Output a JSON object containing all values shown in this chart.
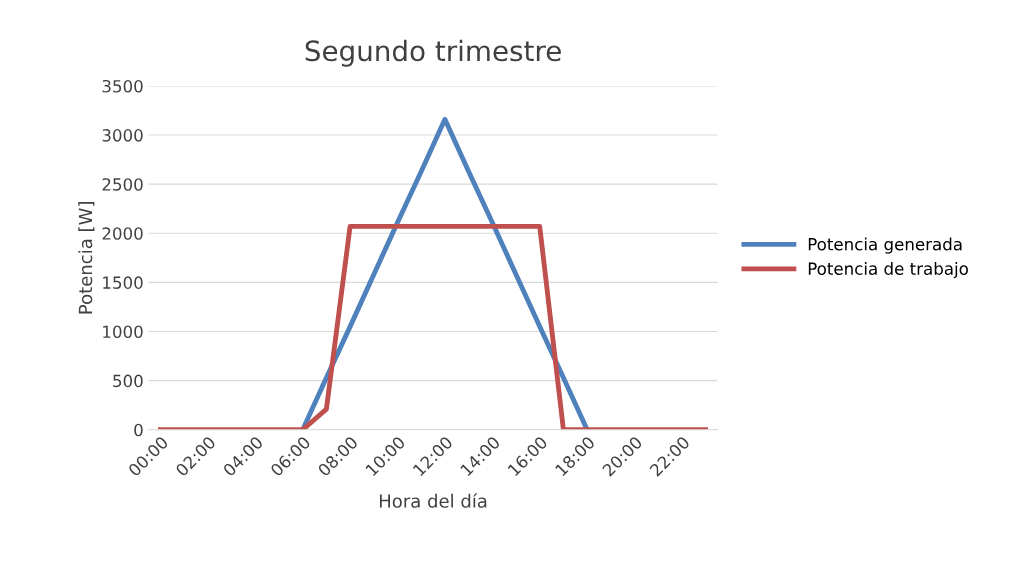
{
  "chart_data": {
    "type": "line",
    "title": "Segundo trimestre",
    "xlabel": "Hora del día",
    "ylabel": "Potencia [W]",
    "x": [
      0,
      1,
      2,
      3,
      4,
      5,
      6,
      7,
      8,
      9,
      10,
      11,
      12,
      13,
      14,
      15,
      16,
      17,
      18,
      19,
      20,
      21,
      22,
      23
    ],
    "xlim": [
      -0.5,
      23.5
    ],
    "xticks": [
      {
        "value": 0,
        "label": "00:00"
      },
      {
        "value": 2,
        "label": "02:00"
      },
      {
        "value": 4,
        "label": "04:00"
      },
      {
        "value": 6,
        "label": "06:00"
      },
      {
        "value": 8,
        "label": "08:00"
      },
      {
        "value": 10,
        "label": "10:00"
      },
      {
        "value": 12,
        "label": "12:00"
      },
      {
        "value": 14,
        "label": "14:00"
      },
      {
        "value": 16,
        "label": "16:00"
      },
      {
        "value": 18,
        "label": "18:00"
      },
      {
        "value": 20,
        "label": "20:00"
      },
      {
        "value": 22,
        "label": "22:00"
      }
    ],
    "ylim": [
      0,
      3500
    ],
    "yticks": [
      0,
      500,
      1000,
      1500,
      2000,
      2500,
      3000,
      3500
    ],
    "grid": "y",
    "legend": "right",
    "marker": "none",
    "line_style": "solid",
    "series": [
      {
        "name": "Potencia generada",
        "color": "#4f81bd",
        "values": [
          null,
          null,
          null,
          null,
          null,
          null,
          0,
          530,
          1050,
          1580,
          2110,
          2630,
          3160,
          2630,
          2110,
          1580,
          1050,
          530,
          0,
          null,
          null,
          null,
          null,
          null
        ]
      },
      {
        "name": "Potencia de trabajo",
        "color": "#c0504d",
        "values": [
          0,
          0,
          0,
          0,
          0,
          0,
          0,
          210,
          2070,
          2070,
          2070,
          2070,
          2070,
          2070,
          2070,
          2070,
          2070,
          0,
          0,
          0,
          0,
          0,
          0,
          0
        ]
      }
    ]
  }
}
